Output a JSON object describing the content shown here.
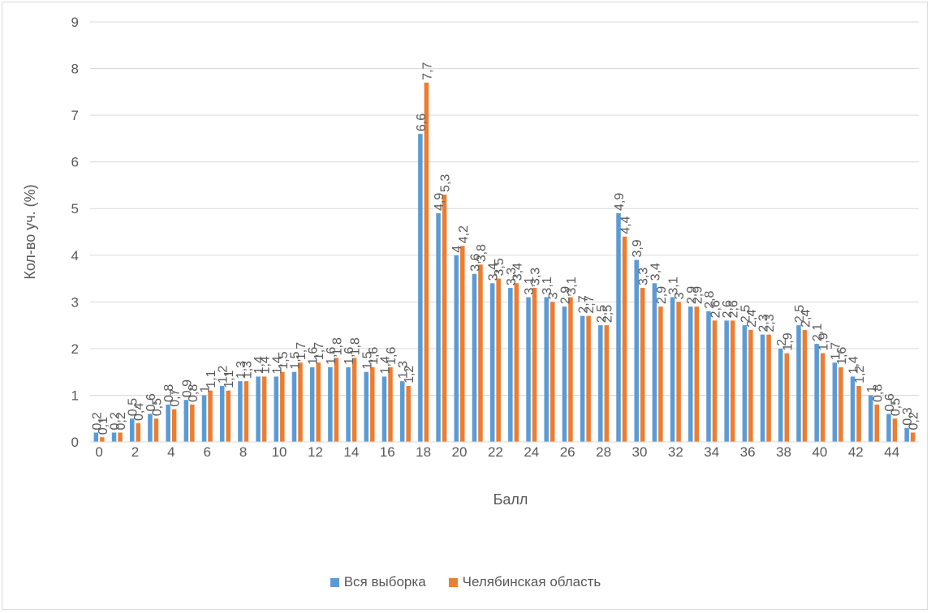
{
  "chart_data": {
    "type": "bar",
    "title": "",
    "xlabel": "Балл",
    "ylabel": "Кол-во уч. (%)",
    "ylim": [
      0,
      9
    ],
    "yticks": [
      "0",
      "1",
      "2",
      "3",
      "4",
      "5",
      "6",
      "7",
      "8",
      "9"
    ],
    "grid": true,
    "legend_position": "bottom",
    "categories": [
      "0",
      "1",
      "2",
      "3",
      "4",
      "5",
      "6",
      "7",
      "8",
      "9",
      "10",
      "11",
      "12",
      "13",
      "14",
      "15",
      "16",
      "17",
      "18",
      "19",
      "20",
      "21",
      "22",
      "23",
      "24",
      "25",
      "26",
      "27",
      "28",
      "29",
      "30",
      "31",
      "32",
      "33",
      "34",
      "35",
      "36",
      "37",
      "38",
      "39",
      "40",
      "41",
      "42",
      "43",
      "44",
      "45"
    ],
    "x_tick_labels": [
      "0",
      "2",
      "4",
      "6",
      "8",
      "10",
      "12",
      "14",
      "16",
      "18",
      "20",
      "22",
      "24",
      "26",
      "28",
      "30",
      "32",
      "34",
      "36",
      "38",
      "40",
      "42",
      "44"
    ],
    "series": [
      {
        "name": "Вся выборка",
        "color": "#5b9bd5",
        "values": [
          0.2,
          0.2,
          0.5,
          0.6,
          0.8,
          0.9,
          1.0,
          1.2,
          1.3,
          1.4,
          1.4,
          1.5,
          1.6,
          1.6,
          1.6,
          1.5,
          1.4,
          1.3,
          6.6,
          4.9,
          4.0,
          3.6,
          3.4,
          3.3,
          3.1,
          3.1,
          2.9,
          2.7,
          2.5,
          4.9,
          3.9,
          3.4,
          3.1,
          2.9,
          2.8,
          2.6,
          2.5,
          2.3,
          2.0,
          2.5,
          2.1,
          1.7,
          1.4,
          1.0,
          0.6,
          0.3
        ],
        "labels": [
          "0,2",
          "0,2",
          "0,5",
          "0,6",
          "0,8",
          "0,9",
          "1",
          "1,2",
          "1,3",
          "1,4",
          "1,4",
          "1,5",
          "1,6",
          "1,6",
          "1,6",
          "1,5",
          "1,4",
          "1,3",
          "6,6",
          "4,9",
          "4",
          "3,6",
          "3,4",
          "3,3",
          "3,1",
          "3,1",
          "2,9",
          "2,7",
          "2,5",
          "4,9",
          "3,9",
          "3,4",
          "3,1",
          "2,9",
          "2,8",
          "2,6",
          "2,5",
          "2,3",
          "2",
          "2,5",
          "2,1",
          "1,7",
          "1,4",
          "1",
          "0,6",
          "0,3"
        ]
      },
      {
        "name": "Челябинская область",
        "color": "#ed7d31",
        "values": [
          0.1,
          0.2,
          0.4,
          0.5,
          0.7,
          0.8,
          1.1,
          1.1,
          1.3,
          1.4,
          1.5,
          1.7,
          1.7,
          1.8,
          1.8,
          1.6,
          1.6,
          1.2,
          7.7,
          5.3,
          4.2,
          3.8,
          3.5,
          3.4,
          3.3,
          3.0,
          3.1,
          2.7,
          2.5,
          4.4,
          3.3,
          2.9,
          3.0,
          2.9,
          2.6,
          2.6,
          2.4,
          2.3,
          1.9,
          2.4,
          1.9,
          1.6,
          1.2,
          0.8,
          0.5,
          0.2
        ],
        "labels": [
          "0,1",
          "0,2",
          "0,4",
          "0,5",
          "0,7",
          "0,8",
          "1,1",
          "1,1",
          "1,3",
          "1,4",
          "1,5",
          "1,7",
          "1,7",
          "1,8",
          "1,8",
          "1,6",
          "1,6",
          "1,2",
          "7,7",
          "5,3",
          "4,2",
          "3,8",
          "3,5",
          "3,4",
          "3,3",
          "3",
          "3,1",
          "2,7",
          "2,5",
          "4,4",
          "3,3",
          "2,9",
          "3",
          "2,9",
          "2,6",
          "2,6",
          "2,4",
          "2,3",
          "1,9",
          "2,4",
          "1,9",
          "1,6",
          "1,2",
          "0,8",
          "0,5",
          "0,2"
        ]
      }
    ]
  }
}
